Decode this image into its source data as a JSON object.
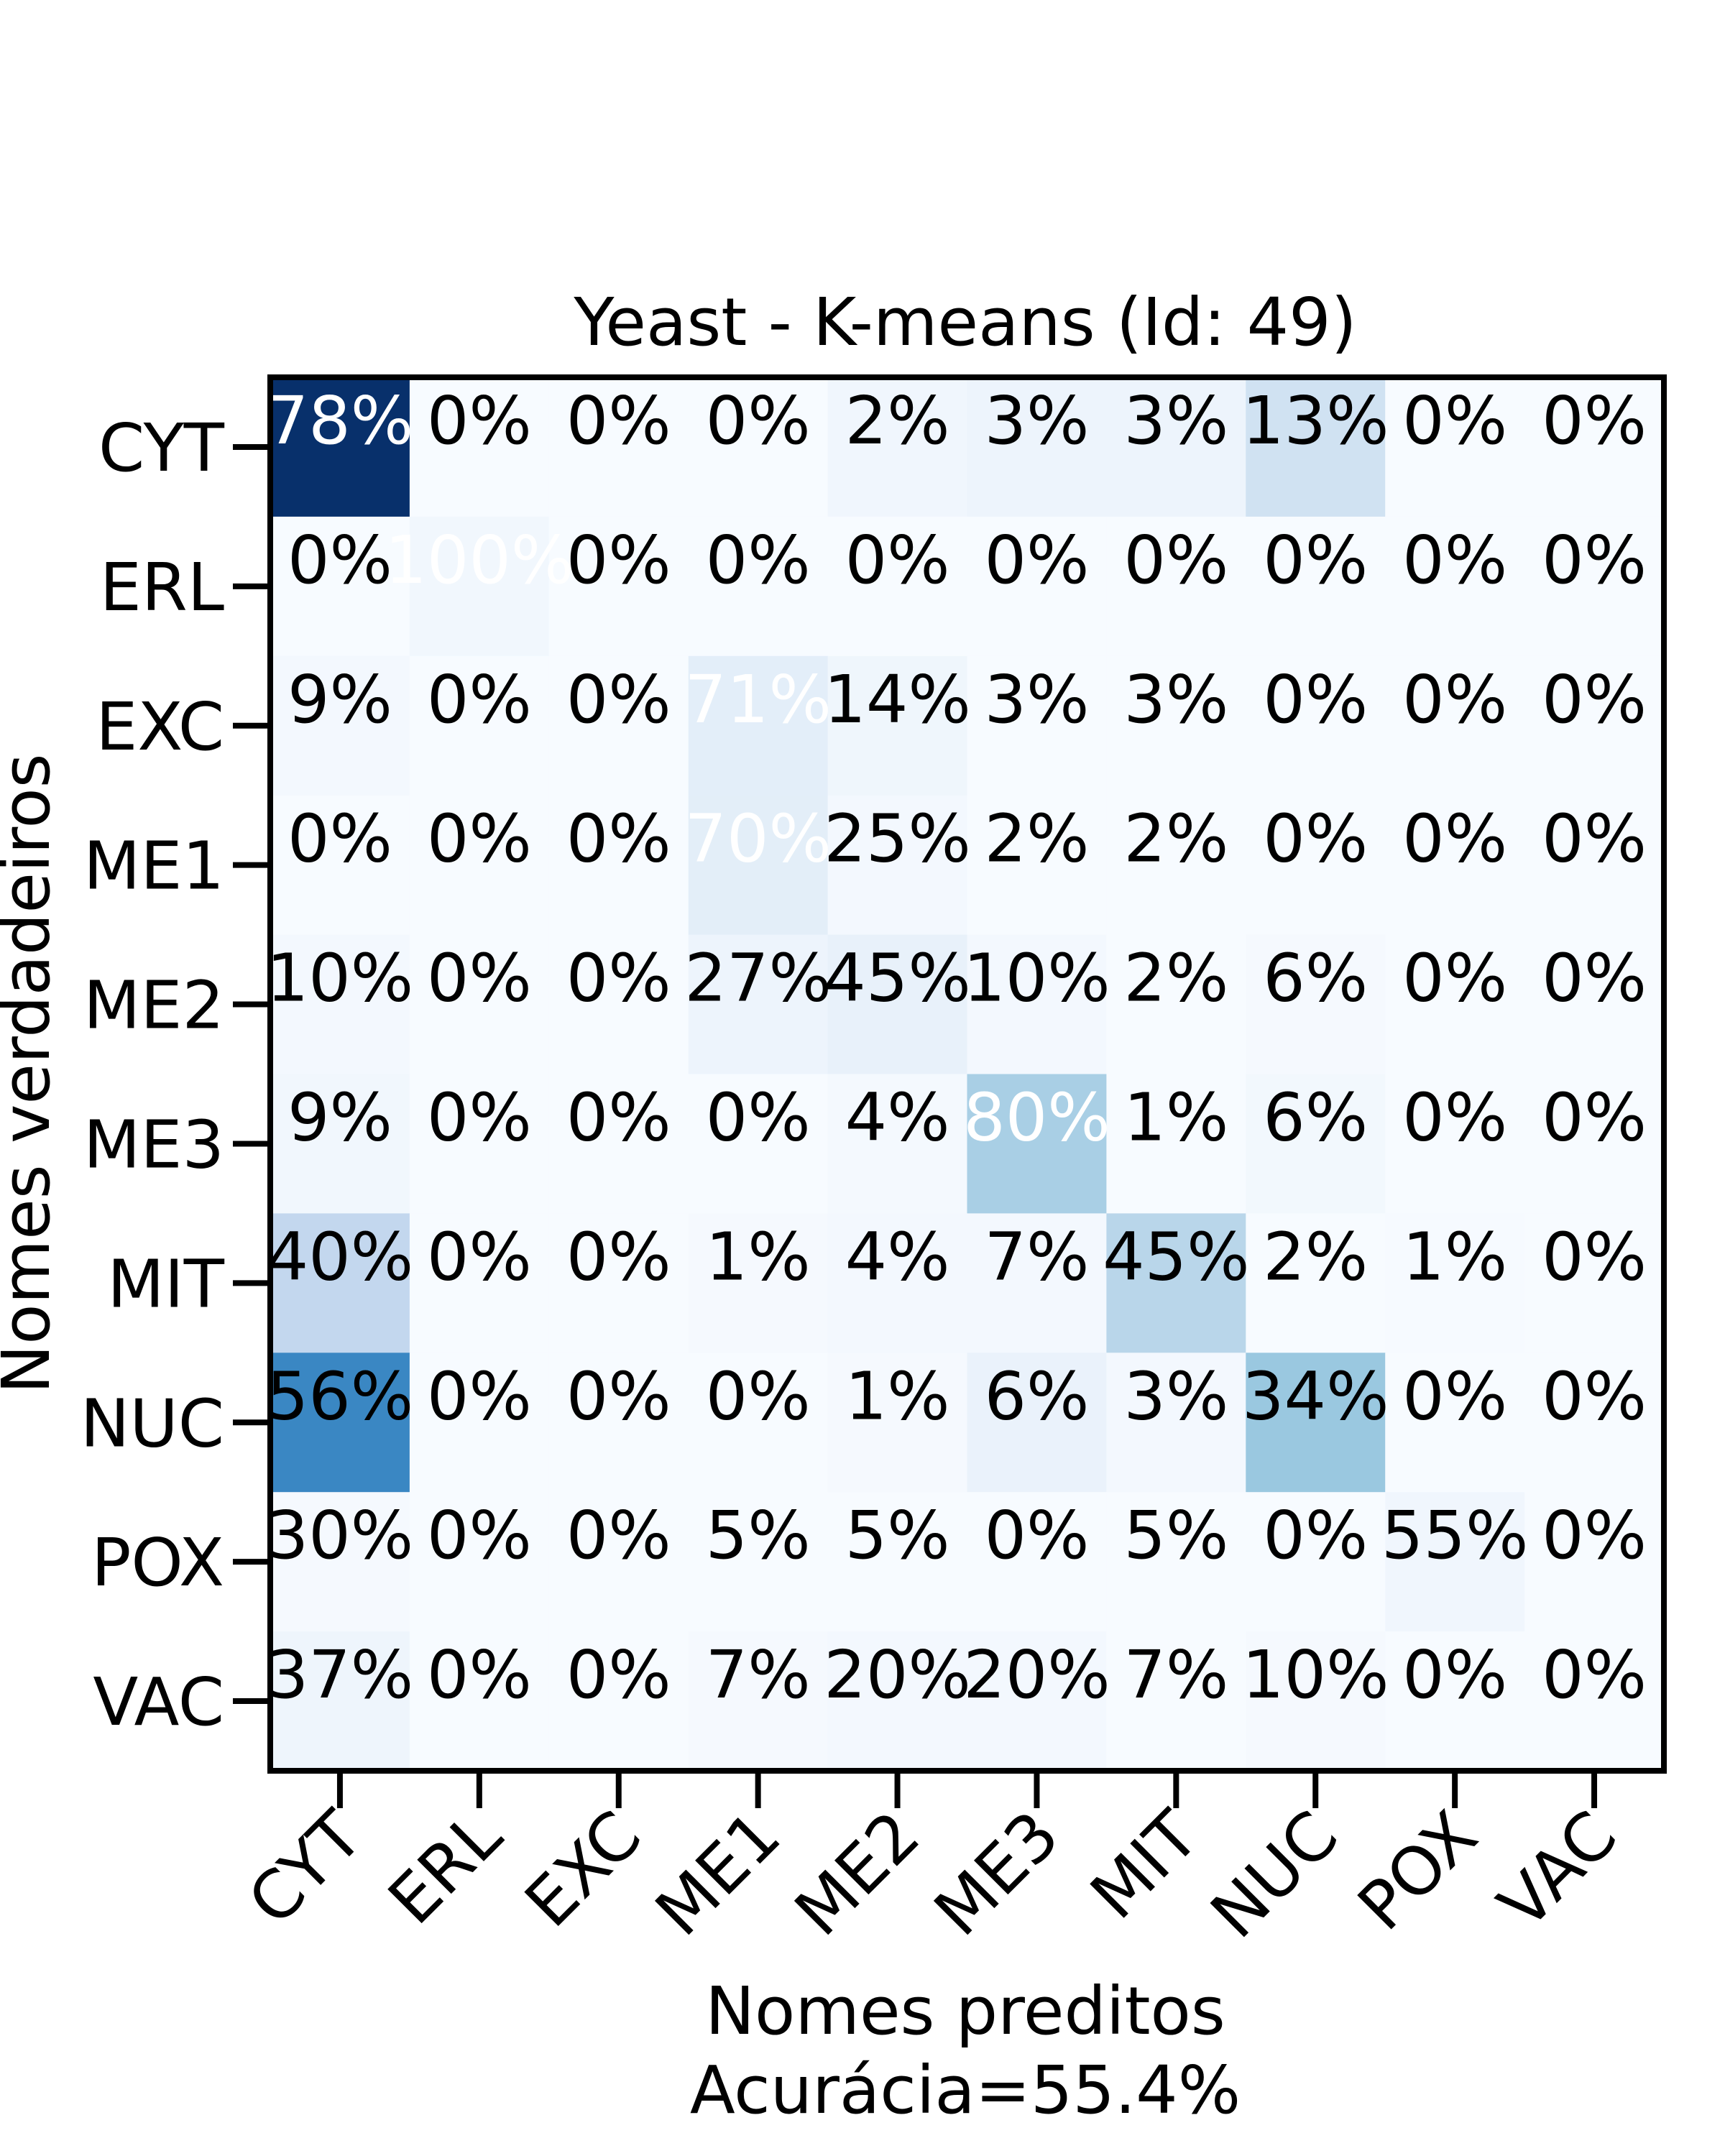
{
  "chart_data": {
    "type": "heatmap",
    "title": "Yeast - K-means (Id: 49)",
    "xlabel": "Nomes preditos",
    "xlabel_line2": "Acurácia=55.4%",
    "ylabel": "Nomes verdadeiros",
    "x_categories": [
      "CYT",
      "ERL",
      "EXC",
      "ME1",
      "ME2",
      "ME3",
      "MIT",
      "NUC",
      "POX",
      "VAC"
    ],
    "y_categories": [
      "CYT",
      "ERL",
      "EXC",
      "ME1",
      "ME2",
      "ME3",
      "MIT",
      "NUC",
      "POX",
      "VAC"
    ],
    "values": [
      [
        78,
        0,
        0,
        0,
        2,
        3,
        3,
        13,
        0,
        0
      ],
      [
        0,
        100,
        0,
        0,
        0,
        0,
        0,
        0,
        0,
        0
      ],
      [
        9,
        0,
        0,
        71,
        14,
        3,
        3,
        0,
        0,
        0
      ],
      [
        0,
        0,
        0,
        70,
        25,
        2,
        2,
        0,
        0,
        0
      ],
      [
        10,
        0,
        0,
        27,
        45,
        10,
        2,
        6,
        0,
        0
      ],
      [
        9,
        0,
        0,
        0,
        4,
        80,
        1,
        6,
        0,
        0
      ],
      [
        40,
        0,
        0,
        1,
        4,
        7,
        45,
        2,
        1,
        0
      ],
      [
        56,
        0,
        0,
        0,
        1,
        6,
        3,
        34,
        0,
        0
      ],
      [
        30,
        0,
        0,
        5,
        5,
        0,
        5,
        0,
        55,
        0
      ],
      [
        37,
        0,
        0,
        7,
        20,
        20,
        7,
        10,
        0,
        0
      ]
    ],
    "cell_colors": [
      [
        "#08306b",
        "#f7fbff",
        "#f7fbff",
        "#f7fbff",
        "#f0f6fd",
        "#edf4fc",
        "#edf4fc",
        "#d0e2f2",
        "#f7fbff",
        "#f7fbff"
      ],
      [
        "#f7fbff",
        "#f1f7fd",
        "#f7fbff",
        "#f7fbff",
        "#f7fbff",
        "#f7fbff",
        "#f7fbff",
        "#f7fbff",
        "#f7fbff",
        "#f7fbff"
      ],
      [
        "#f3f8fe",
        "#f7fbff",
        "#f7fbff",
        "#e3eef9",
        "#eff6fc",
        "#f7fbff",
        "#f7fbff",
        "#f7fbff",
        "#f7fbff",
        "#f7fbff"
      ],
      [
        "#f7fbff",
        "#f7fbff",
        "#f7fbff",
        "#e3eef8",
        "#f3f8fe",
        "#f7fbff",
        "#f7fbff",
        "#f7fbff",
        "#f7fbff",
        "#f7fbff"
      ],
      [
        "#f3f8fe",
        "#f7fbff",
        "#f7fbff",
        "#edf4fc",
        "#e8f1fa",
        "#f3f8fe",
        "#f7fbff",
        "#f5f9fe",
        "#f7fbff",
        "#f7fbff"
      ],
      [
        "#f1f7fd",
        "#f7fbff",
        "#f7fbff",
        "#f7fbff",
        "#f4f9fe",
        "#a9cfe5",
        "#f7fbff",
        "#f2f8fd",
        "#f7fbff",
        "#f7fbff"
      ],
      [
        "#c3d7ee",
        "#f7fbff",
        "#f7fbff",
        "#f5f9fe",
        "#f3f8fe",
        "#f3f8fe",
        "#b9d6ea",
        "#f7fbff",
        "#f6faff",
        "#f7fbff"
      ],
      [
        "#3a87c3",
        "#f7fbff",
        "#f7fbff",
        "#f7fbff",
        "#f5f9fe",
        "#eaf2fb",
        "#f3f8fe",
        "#9ac8e0",
        "#f7fbff",
        "#f7fbff"
      ],
      [
        "#f5f9fe",
        "#f7fbff",
        "#f7fbff",
        "#f7fbff",
        "#f7fbff",
        "#f7fbff",
        "#f7fbff",
        "#f7fbff",
        "#f0f6fd",
        "#f7fbff"
      ],
      [
        "#eef5fc",
        "#f7fbff",
        "#f7fbff",
        "#f5f9fe",
        "#f3f8fe",
        "#f3f8fe",
        "#f7fbff",
        "#f5f9fe",
        "#f7fbff",
        "#f7fbff"
      ]
    ],
    "white_text_threshold": 60,
    "colormap": "Blues"
  }
}
